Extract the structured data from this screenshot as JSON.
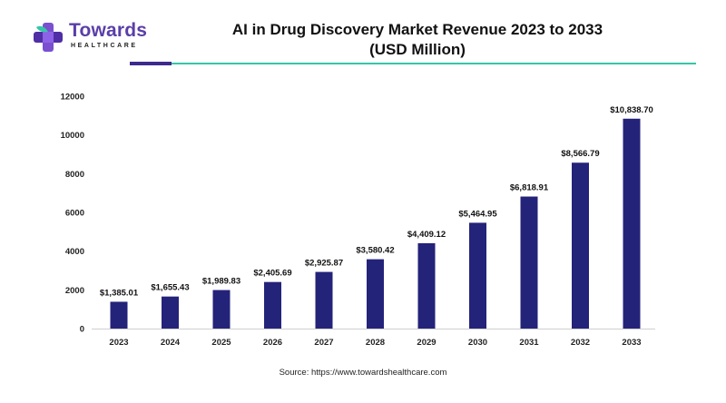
{
  "brand": {
    "name": "Towards",
    "subtitle": "HEALTHCARE"
  },
  "source": "Source: https://www.towardshealthcare.com",
  "colors": {
    "bar": "#24237a",
    "brand_purple": "#5b3ea8",
    "accent_teal": "#35c6a8",
    "underline_purple": "#3d2a8c"
  },
  "chart_data": {
    "type": "bar",
    "title_lines": [
      "AI in Drug Discovery Market Revenue 2023 to 2033",
      "(USD Million)"
    ],
    "xlabel": "",
    "ylabel": "",
    "categories": [
      "2023",
      "2024",
      "2025",
      "2026",
      "2027",
      "2028",
      "2029",
      "2030",
      "2031",
      "2032",
      "2033"
    ],
    "values": [
      1385.01,
      1655.43,
      1989.83,
      2405.69,
      2925.87,
      3580.42,
      4409.12,
      5464.95,
      6818.91,
      8566.79,
      10838.7
    ],
    "data_labels": [
      "$1,385.01",
      "$1,655.43",
      "$1,989.83",
      "$2,405.69",
      "$2,925.87",
      "$3,580.42",
      "$4,409.12",
      "$5,464.95",
      "$6,818.91",
      "$8,566.79",
      "$10,838.70"
    ],
    "ylim": [
      0,
      12000
    ],
    "yticks": [
      0,
      2000,
      4000,
      6000,
      8000,
      10000,
      12000
    ],
    "grid": false,
    "legend": "none"
  }
}
